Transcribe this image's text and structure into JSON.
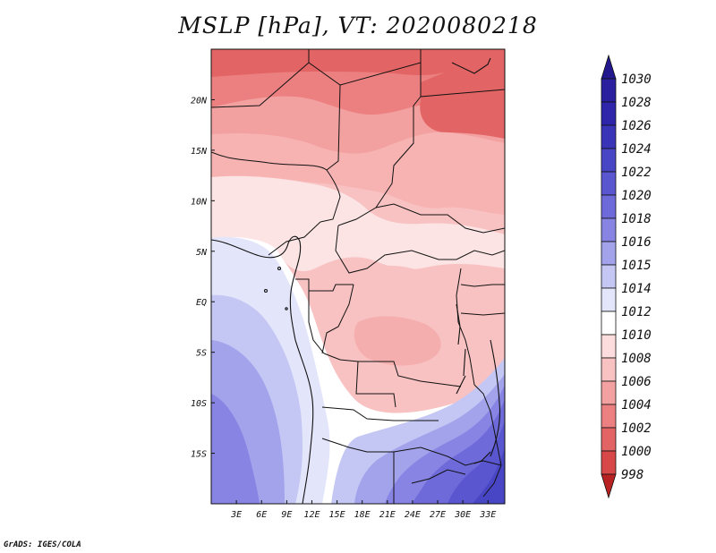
{
  "title": "MSLP [hPa], VT: 2020080218",
  "credit": "GrADS: IGES/COLA",
  "map": {
    "region": "Central Africa",
    "lon_range": [
      0,
      35
    ],
    "lat_range": [
      -20,
      25
    ],
    "lon_ticks": [
      {
        "value": 3,
        "label": "3E"
      },
      {
        "value": 6,
        "label": "6E"
      },
      {
        "value": 9,
        "label": "9E"
      },
      {
        "value": 12,
        "label": "12E"
      },
      {
        "value": 15,
        "label": "15E"
      },
      {
        "value": 18,
        "label": "18E"
      },
      {
        "value": 21,
        "label": "21E"
      },
      {
        "value": 24,
        "label": "24E"
      },
      {
        "value": 27,
        "label": "27E"
      },
      {
        "value": 30,
        "label": "30E"
      },
      {
        "value": 33,
        "label": "33E"
      }
    ],
    "lat_ticks": [
      {
        "value": 20,
        "label": "20N"
      },
      {
        "value": 15,
        "label": "15N"
      },
      {
        "value": 10,
        "label": "10N"
      },
      {
        "value": 5,
        "label": "5N"
      },
      {
        "value": 0,
        "label": "EQ"
      },
      {
        "value": -5,
        "label": "5S"
      },
      {
        "value": -10,
        "label": "10S"
      },
      {
        "value": -15,
        "label": "15S"
      }
    ]
  },
  "colorbar": {
    "levels": [
      {
        "label": "1030",
        "color": "#2a1f9e"
      },
      {
        "label": "1028",
        "color": "#2e25aa"
      },
      {
        "label": "1026",
        "color": "#3a35b8"
      },
      {
        "label": "1024",
        "color": "#4846c4"
      },
      {
        "label": "1022",
        "color": "#5956cf"
      },
      {
        "label": "1020",
        "color": "#6e6ad9"
      },
      {
        "label": "1018",
        "color": "#8884e3"
      },
      {
        "label": "1016",
        "color": "#a3a3ec"
      },
      {
        "label": "1015",
        "color": "#c4c6f4"
      },
      {
        "label": "1014",
        "color": "#e3e5fb"
      },
      {
        "label": "1012",
        "color": "#ffffff"
      },
      {
        "label": "1010",
        "color": "#fcdcdc"
      },
      {
        "label": "1008",
        "color": "#f9c2c2"
      },
      {
        "label": "1006",
        "color": "#f3a0a0"
      },
      {
        "label": "1004",
        "color": "#ec8080"
      },
      {
        "label": "1002",
        "color": "#e36464"
      },
      {
        "label": "1000",
        "color": "#d84848"
      },
      {
        "label": "998",
        "color": "#c83232"
      }
    ],
    "cap_top_color": "#24188f",
    "cap_bottom_color": "#b82222"
  }
}
